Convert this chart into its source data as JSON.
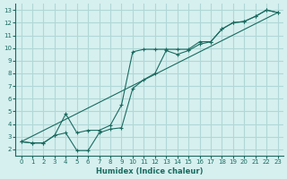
{
  "xlabel": "Humidex (Indice chaleur)",
  "ylabel": "",
  "bg_color": "#d6f0ef",
  "grid_color": "#b0d8d6",
  "line_color": "#1a6b60",
  "xlim": [
    -0.5,
    23.5
  ],
  "ylim": [
    1.5,
    13.5
  ],
  "xticks": [
    0,
    1,
    2,
    3,
    4,
    5,
    6,
    7,
    8,
    9,
    10,
    11,
    12,
    13,
    14,
    15,
    16,
    17,
    18,
    19,
    20,
    21,
    22,
    23
  ],
  "yticks": [
    2,
    3,
    4,
    5,
    6,
    7,
    8,
    9,
    10,
    11,
    12,
    13
  ],
  "series1_x": [
    0,
    1,
    2,
    3,
    4,
    5,
    6,
    7,
    8,
    9,
    10,
    11,
    12,
    13,
    14,
    15,
    16,
    17,
    18,
    19,
    20,
    21,
    22,
    23
  ],
  "series1_y": [
    2.6,
    2.5,
    2.5,
    3.1,
    4.8,
    3.3,
    3.5,
    3.5,
    3.9,
    5.5,
    9.7,
    9.9,
    9.9,
    9.9,
    9.9,
    9.9,
    10.5,
    10.5,
    11.5,
    12.0,
    12.1,
    12.5,
    13.0,
    12.8
  ],
  "series2_x": [
    0,
    1,
    2,
    3,
    4,
    5,
    6,
    7,
    8,
    9,
    10,
    11,
    12,
    13,
    14,
    15,
    16,
    17,
    18,
    19,
    20,
    21,
    22,
    23
  ],
  "series2_y": [
    2.6,
    2.5,
    2.5,
    3.1,
    3.3,
    1.9,
    1.9,
    3.3,
    3.6,
    3.7,
    6.8,
    7.5,
    8.0,
    9.8,
    9.5,
    9.8,
    10.3,
    10.5,
    11.5,
    12.0,
    12.1,
    12.5,
    13.0,
    12.8
  ],
  "series3_x": [
    0,
    23
  ],
  "series3_y": [
    2.6,
    12.8
  ]
}
